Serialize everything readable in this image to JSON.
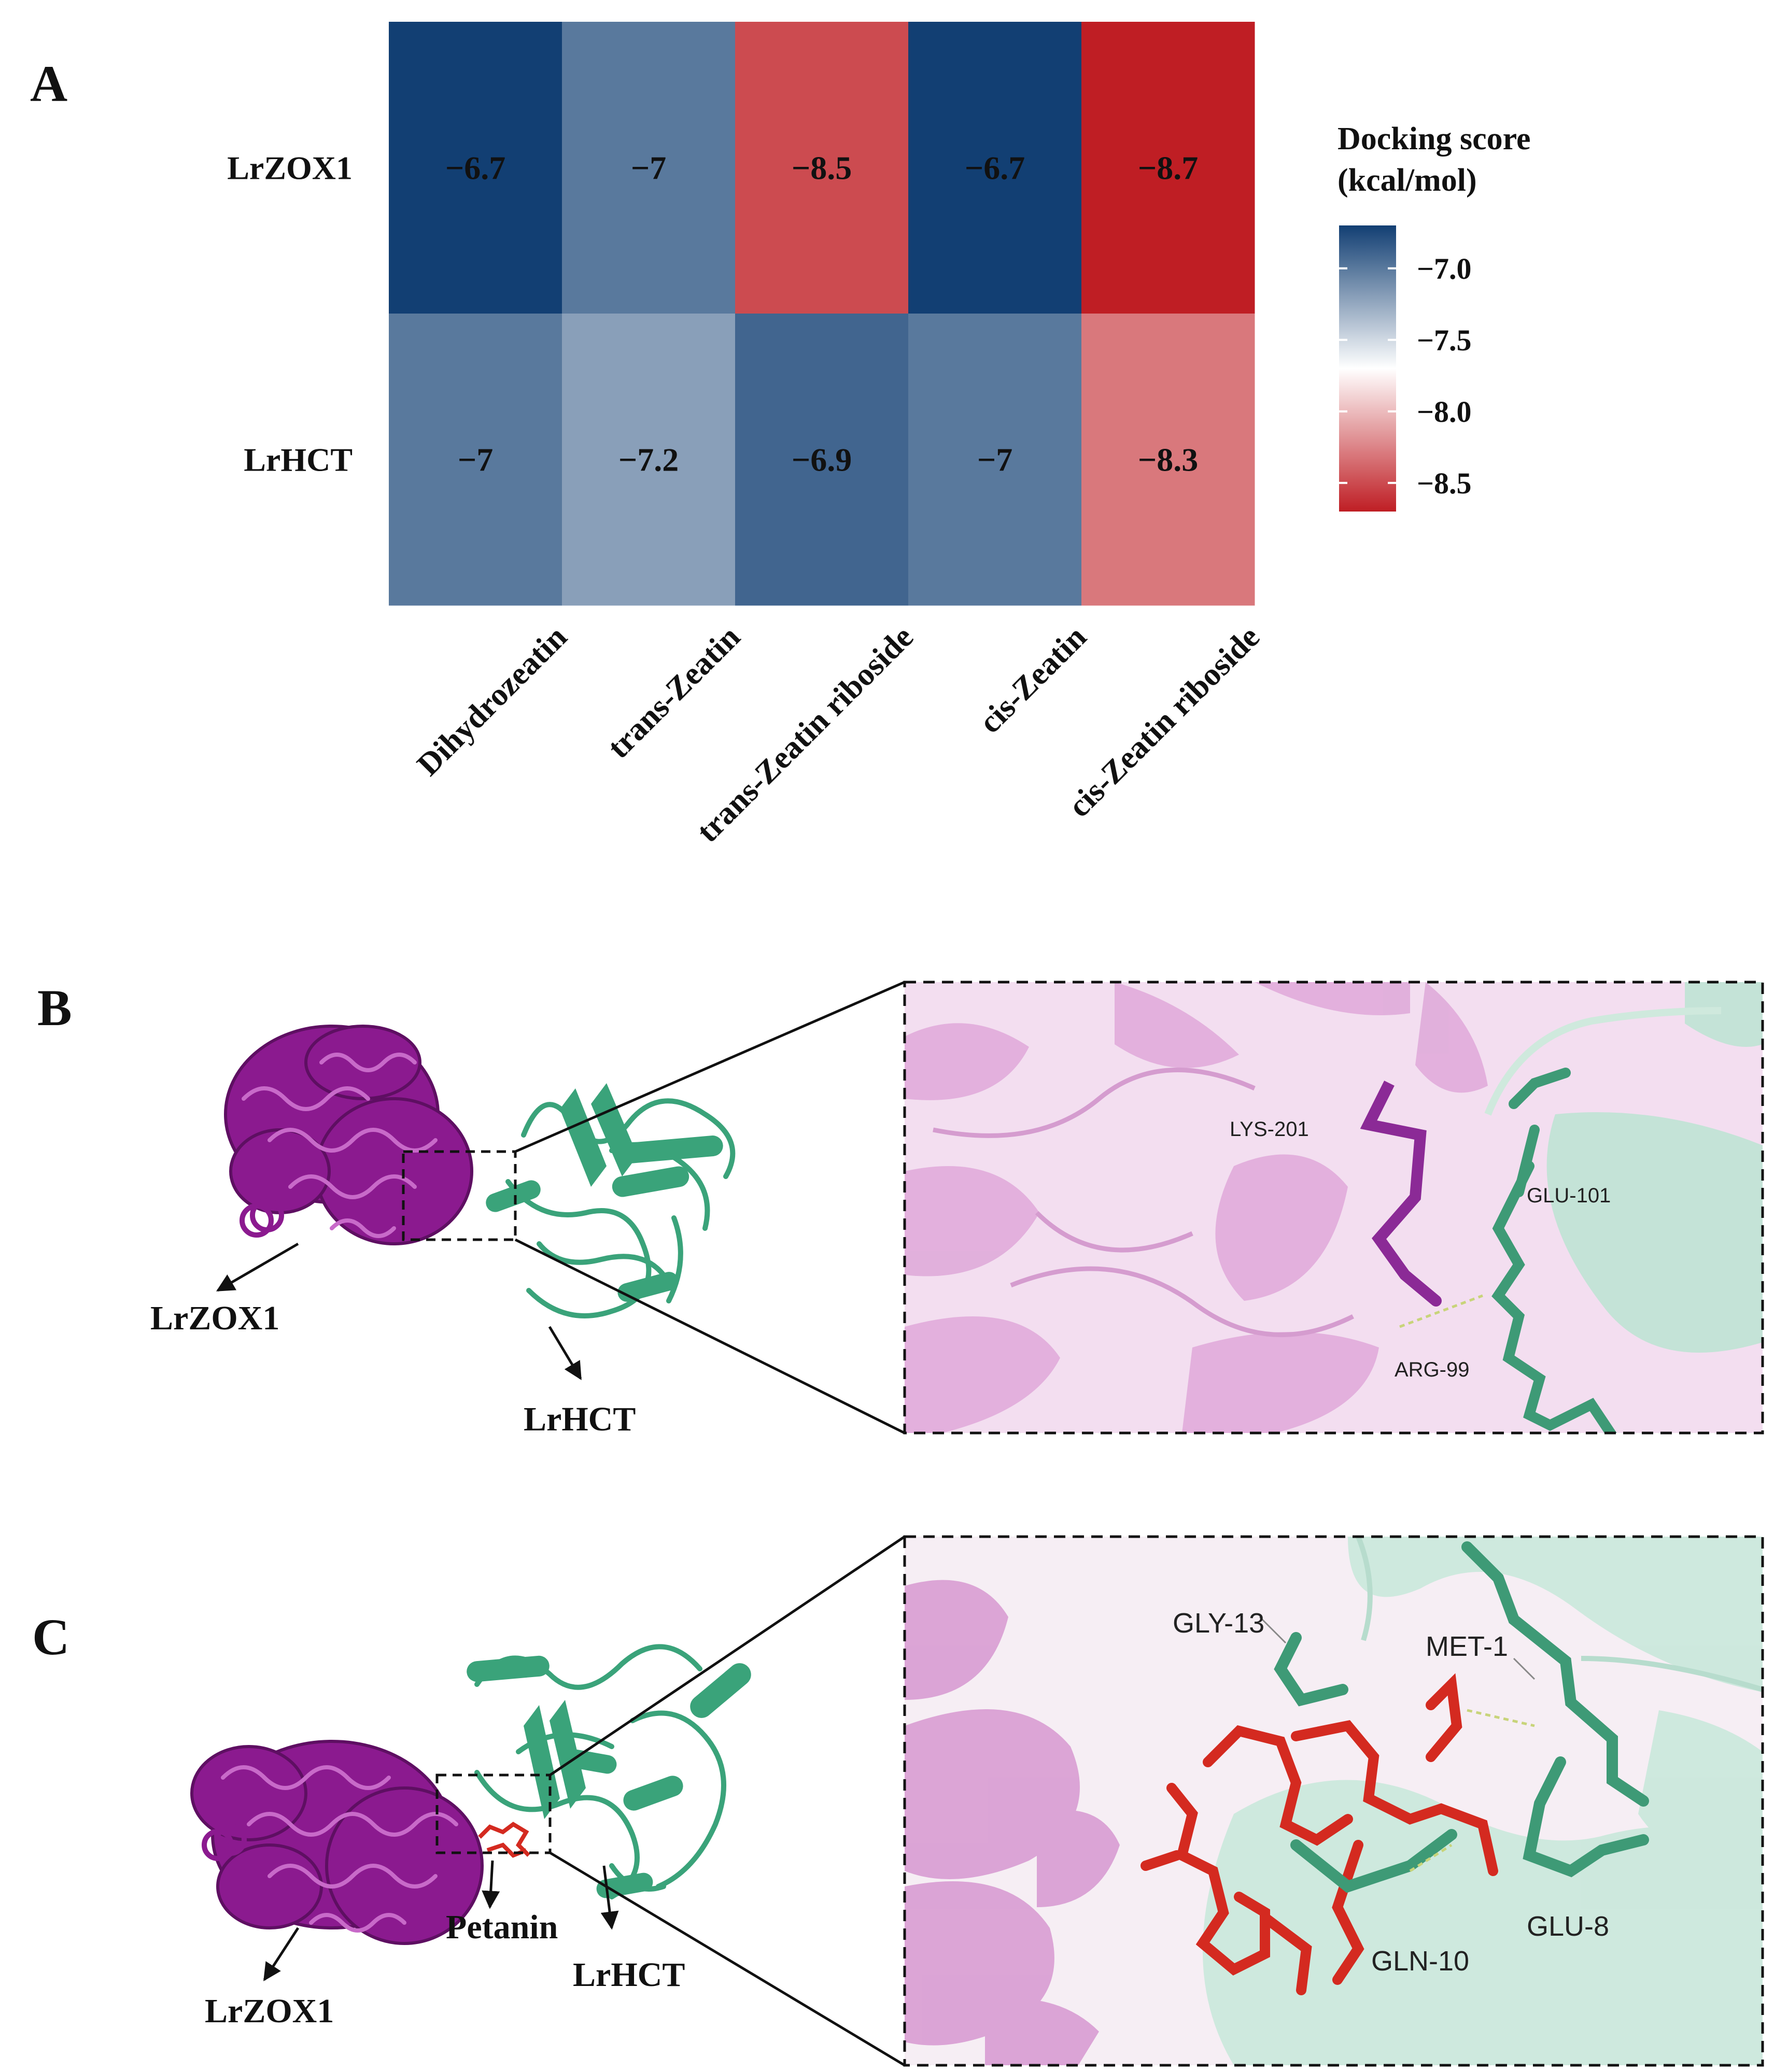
{
  "panel_letters": {
    "a": "A",
    "b": "B",
    "c": "C"
  },
  "chart_data": {
    "type": "heatmap",
    "rows": [
      "LrZOX1",
      "LrHCT"
    ],
    "columns": [
      "Dihydrozeatin",
      "trans-Zeatin",
      "trans-Zeatin riboside",
      "cis-Zeatin",
      "cis-Zeatin riboside"
    ],
    "values": [
      [
        -6.7,
        -7,
        -8.5,
        -6.7,
        -8.7
      ],
      [
        -7,
        -7.2,
        -6.9,
        -7,
        -8.3
      ]
    ],
    "cell_labels": [
      [
        "−6.7",
        "−7",
        "−8.5",
        "−6.7",
        "−8.7"
      ],
      [
        "−7",
        "−7.2",
        "−6.9",
        "−7",
        "−8.3"
      ]
    ],
    "color_scale": {
      "min": -8.7,
      "max": -6.7,
      "low_color": "#bf1e24",
      "mid_color": "#ffffff",
      "high_color": "#123f73"
    },
    "legend": {
      "title_line1": "Docking score",
      "title_line2": "(kcal/mol)",
      "ticks": [
        -7.0,
        -7.5,
        -8.0,
        -8.5
      ],
      "tick_labels": [
        "−7.0",
        "−7.5",
        "−8.0",
        "−8.5"
      ]
    }
  },
  "panel_b": {
    "protein_1": "LrZOX1",
    "protein_2": "LrHCT",
    "residues": [
      "LYS-201",
      "GLU-101",
      "ARG-99"
    ]
  },
  "panel_c": {
    "protein_1": "LrZOX1",
    "ligand": "Petanin",
    "protein_2": "LrHCT",
    "residues": [
      "GLY-13",
      "MET-1",
      "GLU-8",
      "GLN-10"
    ]
  },
  "colors": {
    "purple": "#8b1a8f",
    "green": "#3aa37a",
    "red_ligand": "#d42a20",
    "light_purple": "#e6b3e0",
    "light_green": "#bfe3d4"
  }
}
